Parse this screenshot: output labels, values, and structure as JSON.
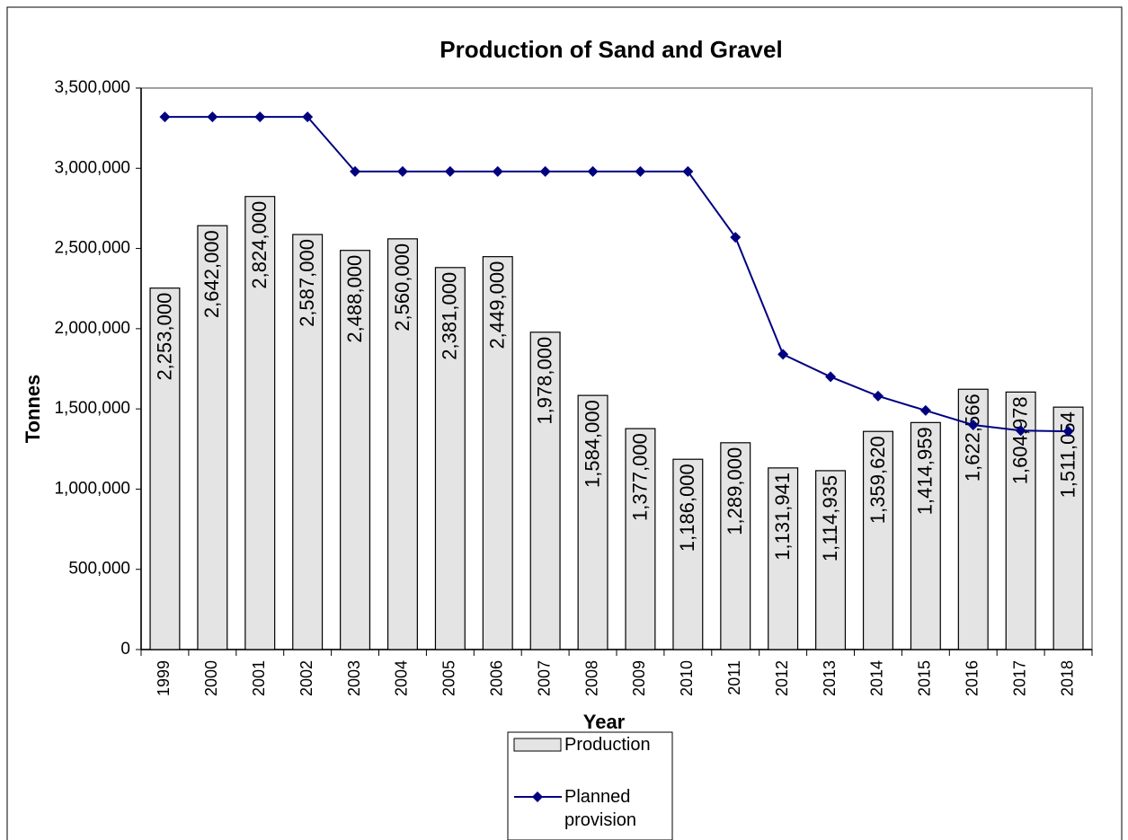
{
  "chart_data": {
    "type": "bar",
    "title": "Production of Sand and Gravel",
    "x_label": "Year",
    "y_label": "Tonnes",
    "categories": [
      "1999",
      "2000",
      "2001",
      "2002",
      "2003",
      "2004",
      "2005",
      "2006",
      "2007",
      "2008",
      "2009",
      "2010",
      "2011",
      "2012",
      "2013",
      "2014",
      "2015",
      "2016",
      "2017",
      "2018"
    ],
    "series": [
      {
        "name": "Production",
        "type": "bar",
        "color": "#e4e4e4",
        "values": [
          2253000,
          2642000,
          2824000,
          2587000,
          2488000,
          2560000,
          2381000,
          2449000,
          1978000,
          1584000,
          1377000,
          1186000,
          1289000,
          1131941,
          1114935,
          1359620,
          1414959,
          1622566,
          1604978,
          1511054
        ],
        "value_labels": [
          "2,253,000",
          "2,642,000",
          "2,824,000",
          "2,587,000",
          "2,488,000",
          "2,560,000",
          "2,381,000",
          "2,449,000",
          "1,978,000",
          "1,584,000",
          "1,377,000",
          "1,186,000",
          "1,289,000",
          "1,131,941",
          "1,114,935",
          "1,359,620",
          "1,414,959",
          "1,622,566",
          "1,604,978",
          "1,511,054"
        ]
      },
      {
        "name": "Planned provision",
        "type": "line",
        "color": "#000080",
        "values": [
          3320000,
          3320000,
          3320000,
          3320000,
          2980000,
          2980000,
          2980000,
          2980000,
          2980000,
          2980000,
          2980000,
          2980000,
          2570000,
          1840000,
          1700000,
          1580000,
          1490000,
          1400000,
          1365000,
          1360000
        ]
      }
    ],
    "ylim": [
      0,
      3500000
    ],
    "yticks": [
      0,
      {
        "value": 500000,
        "label": "500,000"
      },
      {
        "value": 1000000,
        "label": "1,000,000"
      },
      {
        "value": 1500000,
        "label": "1,500,000"
      },
      {
        "value": 2000000,
        "label": "2,000,000"
      },
      {
        "value": 2500000,
        "label": "2,500,000"
      },
      {
        "value": 3000000,
        "label": "3,000,000"
      },
      {
        "value": 3500000,
        "label": "3,500,000"
      }
    ],
    "grid": false,
    "legend": "bottom"
  }
}
